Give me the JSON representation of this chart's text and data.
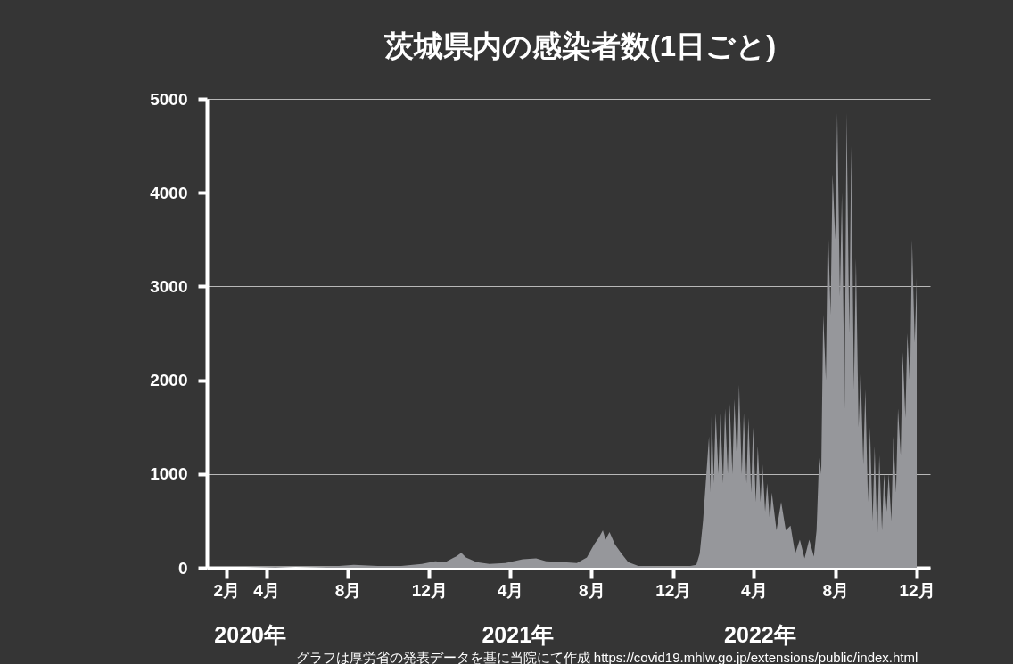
{
  "chart_data": {
    "type": "area",
    "title": "茨城県内の感染者数(1日ごと)",
    "x": [
      "2020-01-15",
      "2020-03-01",
      "2020-04-15",
      "2020-05-15",
      "2020-07-01",
      "2020-08-10",
      "2020-09-15",
      "2020-10-20",
      "2020-11-20",
      "2020-12-10",
      "2020-12-25",
      "2021-01-10",
      "2021-01-18",
      "2021-01-25",
      "2021-02-10",
      "2021-03-01",
      "2021-03-25",
      "2021-04-20",
      "2021-05-10",
      "2021-05-25",
      "2021-06-20",
      "2021-07-10",
      "2021-07-25",
      "2021-08-05",
      "2021-08-12",
      "2021-08-18",
      "2021-08-22",
      "2021-08-28",
      "2021-09-05",
      "2021-09-15",
      "2021-09-25",
      "2021-10-10",
      "2021-11-15",
      "2021-12-20",
      "2022-01-05",
      "2022-01-10",
      "2022-01-15",
      "2022-01-20",
      "2022-01-24",
      "2022-01-26",
      "2022-01-28",
      "2022-01-31",
      "2022-02-03",
      "2022-02-07",
      "2022-02-10",
      "2022-02-14",
      "2022-02-17",
      "2022-02-21",
      "2022-02-24",
      "2022-02-28",
      "2022-03-03",
      "2022-03-07",
      "2022-03-10",
      "2022-03-14",
      "2022-03-17",
      "2022-03-21",
      "2022-03-24",
      "2022-03-28",
      "2022-03-31",
      "2022-04-04",
      "2022-04-07",
      "2022-04-11",
      "2022-04-14",
      "2022-04-18",
      "2022-04-21",
      "2022-04-25",
      "2022-04-28",
      "2022-05-05",
      "2022-05-12",
      "2022-05-19",
      "2022-05-26",
      "2022-06-02",
      "2022-06-09",
      "2022-06-16",
      "2022-06-23",
      "2022-06-30",
      "2022-07-04",
      "2022-07-08",
      "2022-07-11",
      "2022-07-14",
      "2022-07-18",
      "2022-07-21",
      "2022-07-25",
      "2022-07-28",
      "2022-08-01",
      "2022-08-04",
      "2022-08-08",
      "2022-08-11",
      "2022-08-15",
      "2022-08-18",
      "2022-08-22",
      "2022-08-25",
      "2022-08-29",
      "2022-09-01",
      "2022-09-05",
      "2022-09-08",
      "2022-09-12",
      "2022-09-15",
      "2022-09-19",
      "2022-09-22",
      "2022-09-26",
      "2022-09-29",
      "2022-10-03",
      "2022-10-06",
      "2022-10-10",
      "2022-10-13",
      "2022-10-17",
      "2022-10-20",
      "2022-10-24",
      "2022-10-27",
      "2022-10-31",
      "2022-11-03",
      "2022-11-07",
      "2022-11-10",
      "2022-11-14",
      "2022-11-17",
      "2022-11-21",
      "2022-11-24",
      "2022-11-28",
      "2022-12-01"
    ],
    "values": [
      0,
      0,
      10,
      0,
      10,
      30,
      20,
      20,
      40,
      70,
      60,
      120,
      160,
      110,
      60,
      40,
      50,
      90,
      100,
      70,
      60,
      50,
      110,
      250,
      320,
      400,
      300,
      380,
      250,
      150,
      60,
      20,
      10,
      10,
      30,
      150,
      500,
      1000,
      1400,
      800,
      1700,
      900,
      1650,
      1000,
      1650,
      900,
      1700,
      1000,
      1750,
      1000,
      1800,
      1100,
      1950,
      1000,
      1650,
      900,
      1600,
      800,
      1500,
      700,
      1300,
      700,
      1100,
      600,
      900,
      500,
      800,
      400,
      700,
      400,
      450,
      150,
      300,
      100,
      300,
      120,
      400,
      1200,
      1000,
      2700,
      2000,
      3700,
      2700,
      4200,
      3500,
      4850,
      2900,
      4000,
      1700,
      4850,
      2500,
      4500,
      1900,
      3300,
      1500,
      2100,
      1100,
      1900,
      700,
      1500,
      500,
      1300,
      300,
      1200,
      400,
      1000,
      600,
      1000,
      500,
      1400,
      800,
      1700,
      1200,
      2300,
      1600,
      2500,
      1900,
      3500,
      2400,
      3100
    ],
    "color": "#96979b",
    "xlim": [
      "2020-01-03",
      "2022-12-21"
    ],
    "xticks": [
      {
        "value": "2020-02-01",
        "label": "2月"
      },
      {
        "value": "2020-04-01",
        "label": "4月"
      },
      {
        "value": "2020-08-01",
        "label": "8月"
      },
      {
        "value": "2020-12-01",
        "label": "12月"
      },
      {
        "value": "2021-04-01",
        "label": "4月"
      },
      {
        "value": "2021-08-01",
        "label": "8月"
      },
      {
        "value": "2021-12-01",
        "label": "12月"
      },
      {
        "value": "2022-04-01",
        "label": "4月"
      },
      {
        "value": "2022-08-01",
        "label": "8月"
      },
      {
        "value": "2022-12-01",
        "label": "12月"
      }
    ],
    "ylim": [
      0,
      5000
    ],
    "yticks": [
      0,
      1000,
      2000,
      3000,
      4000,
      5000
    ],
    "grid": "y",
    "annotations": [
      "2020年",
      "2021年",
      "2022年",
      "グラフは厚労省の発表データを基に当院にて作成  https://covid19.mhlw.go.jp/extensions/public/index.html"
    ]
  }
}
